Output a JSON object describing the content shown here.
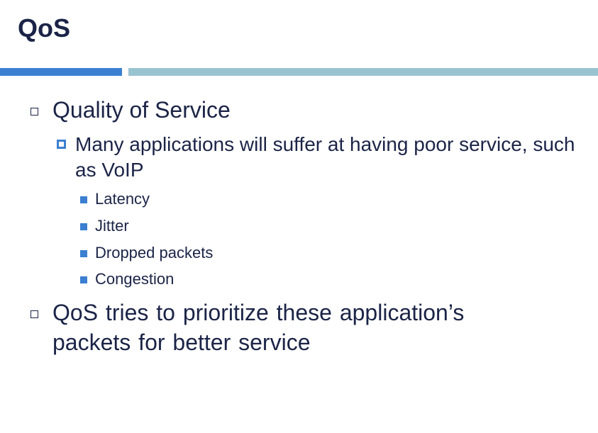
{
  "slide": {
    "title": "QoS",
    "bullets": [
      {
        "text": "Quality of Service"
      },
      {
        "text": "Many applications will suffer at having poor service, such as VoIP"
      },
      {
        "text": "Latency"
      },
      {
        "text": "Jitter"
      },
      {
        "text": "Dropped packets"
      },
      {
        "text": "Congestion"
      },
      {
        "text": "QoS tries to prioritize these application’s packets for better service"
      }
    ]
  },
  "colors": {
    "title_text": "#1b2447",
    "accent_blue": "#3b7fd0",
    "accent_light": "#9ac3d0"
  },
  "icons": {
    "level1": "hollow-square-bullet-icon",
    "level2": "framed-square-bullet-icon",
    "level3": "filled-square-bullet-icon"
  }
}
